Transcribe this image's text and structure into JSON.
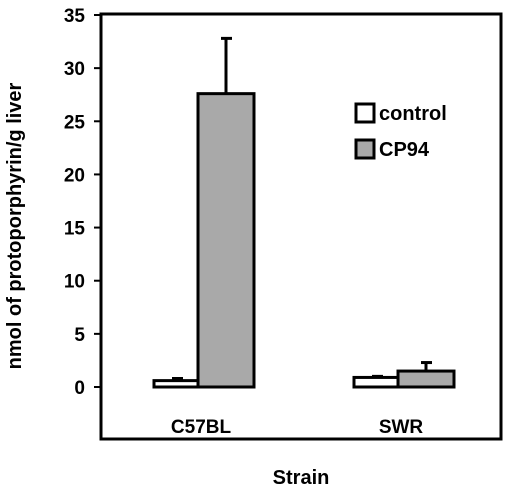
{
  "chart_data": {
    "type": "bar",
    "title": "",
    "xlabel": "Strain",
    "ylabel": "nmol of protoporphyrin/g liver",
    "ylim": [
      0,
      35
    ],
    "yticks": [
      0,
      5,
      10,
      15,
      20,
      25,
      30,
      35
    ],
    "categories": [
      "C57BL",
      "SWR"
    ],
    "series": [
      {
        "name": "control",
        "values": [
          0.6,
          0.9
        ],
        "error": [
          0.2,
          0.1
        ],
        "color": "#ffffff"
      },
      {
        "name": "CP94",
        "values": [
          27.6,
          1.5
        ],
        "error": [
          5.2,
          0.8
        ],
        "color": "#a9a9a9"
      }
    ],
    "legend_position": "top-right",
    "grid": false
  }
}
